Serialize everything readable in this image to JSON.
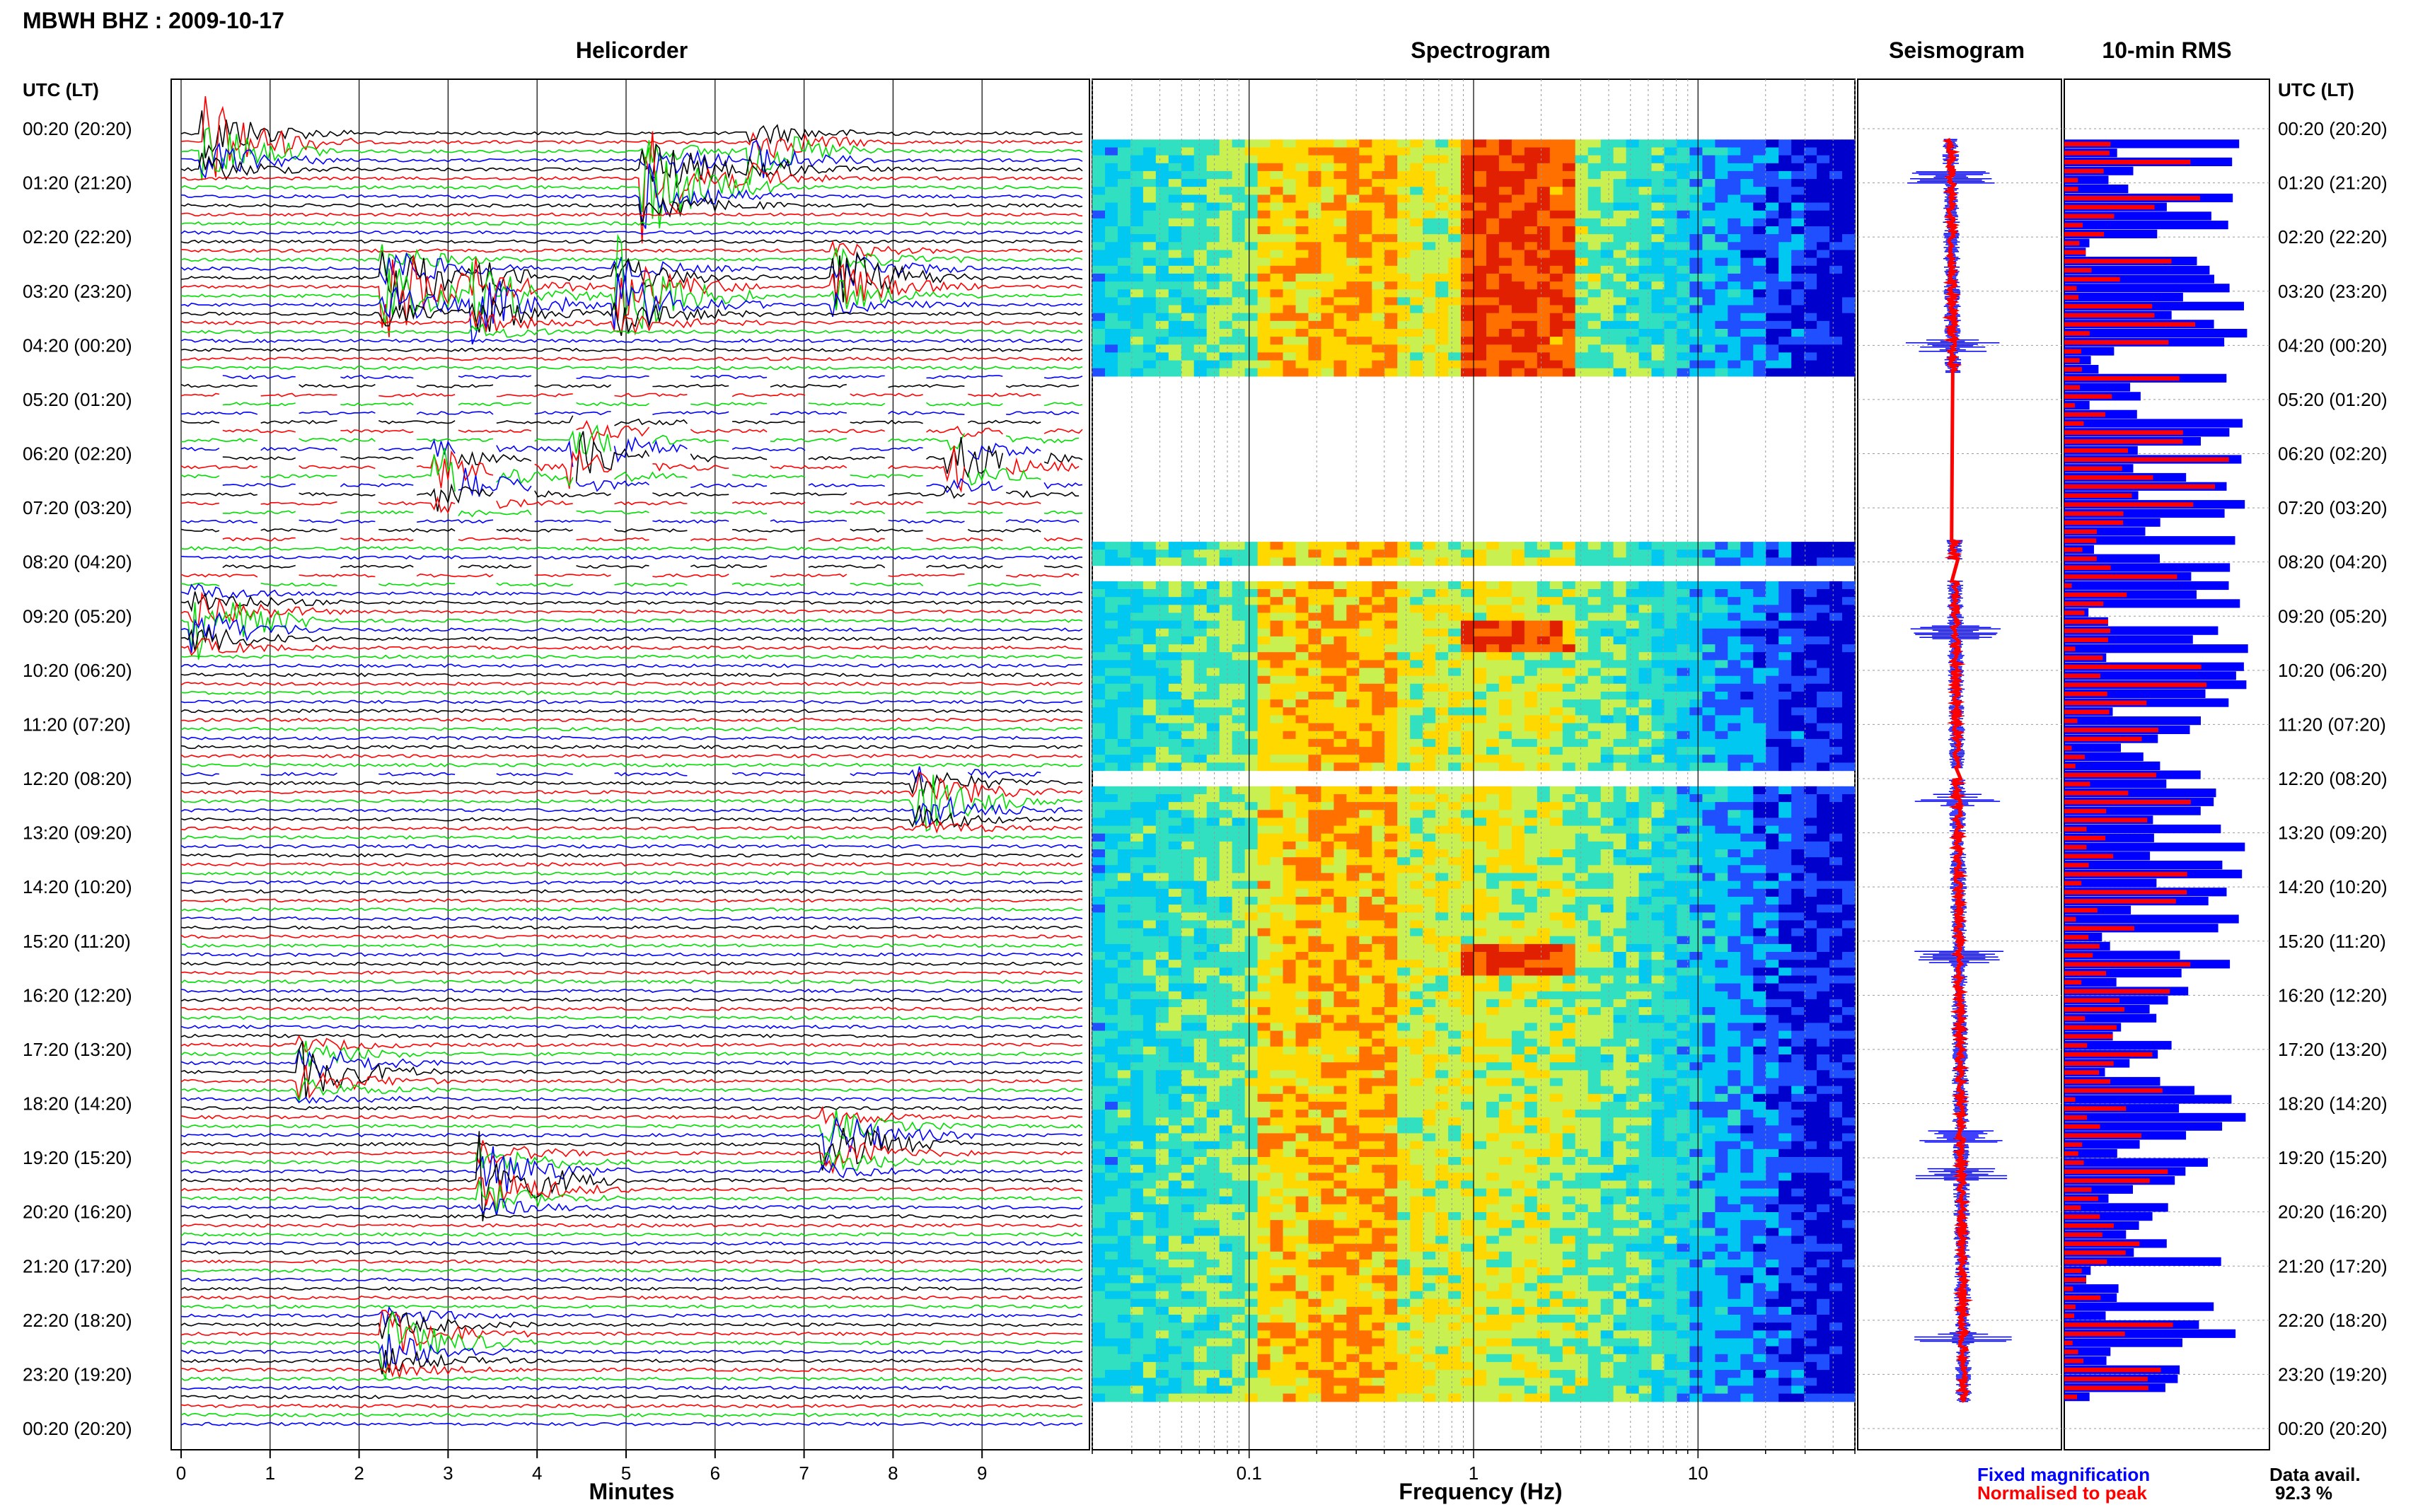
{
  "title": "MBWH BHZ : 2009-10-17",
  "time_axis_label": "UTC (LT)",
  "time_labels": [
    "00:20 (20:20)",
    "01:20 (21:20)",
    "02:20 (22:20)",
    "03:20 (23:20)",
    "04:20 (00:20)",
    "05:20 (01:20)",
    "06:20 (02:20)",
    "07:20 (03:20)",
    "08:20 (04:20)",
    "09:20 (05:20)",
    "10:20 (06:20)",
    "11:20 (07:20)",
    "12:20 (08:20)",
    "13:20 (09:20)",
    "14:20 (10:20)",
    "15:20 (11:20)",
    "16:20 (12:20)",
    "17:20 (13:20)",
    "18:20 (14:20)",
    "19:20 (15:20)",
    "20:20 (16:20)",
    "21:20 (17:20)",
    "22:20 (18:20)",
    "23:20 (19:20)",
    "00:20 (20:20)"
  ],
  "colors": {
    "black": "#000000",
    "red": "#ff0000",
    "green": "#00dd00",
    "blue": "#0000ff"
  },
  "chart_data": [
    {
      "type": "line",
      "title": "Helicorder",
      "xlabel": "Minutes",
      "x_ticks": [
        "0",
        "1",
        "2",
        "3",
        "4",
        "5",
        "6",
        "7",
        "8",
        "9"
      ],
      "xlim": [
        0,
        10
      ],
      "trace_colors_cycle": [
        "black",
        "red",
        "green",
        "blue"
      ],
      "rows_per_hour": 6,
      "bursts": [
        {
          "hour": 0.2,
          "minute": 0.4,
          "amp": 3.5,
          "color": "blue"
        },
        {
          "hour": 0.9,
          "minute": 5.3,
          "amp": 4.5,
          "color": "blue"
        },
        {
          "hour": 0.3,
          "minute": 6.5,
          "amp": 2.0,
          "color": "green"
        },
        {
          "hour": 2.8,
          "minute": 2.4,
          "amp": 4.0,
          "color": "green"
        },
        {
          "hour": 3.0,
          "minute": 5.0,
          "amp": 3.5,
          "color": "red"
        },
        {
          "hour": 2.7,
          "minute": 7.4,
          "amp": 2.5,
          "color": "black"
        },
        {
          "hour": 3.1,
          "minute": 3.4,
          "amp": 2.5,
          "color": "blue"
        },
        {
          "hour": 6.4,
          "minute": 3.0,
          "amp": 2.5,
          "color": "black"
        },
        {
          "hour": 5.9,
          "minute": 4.5,
          "amp": 2.5,
          "color": "red"
        },
        {
          "hour": 6.1,
          "minute": 8.7,
          "amp": 2.0,
          "color": "black"
        },
        {
          "hour": 9.0,
          "minute": 0.3,
          "amp": 2.5,
          "color": "black"
        },
        {
          "hour": 12.3,
          "minute": 8.3,
          "amp": 2.5,
          "color": "black"
        },
        {
          "hour": 17.3,
          "minute": 1.5,
          "amp": 2.0,
          "color": "black"
        },
        {
          "hour": 18.6,
          "minute": 7.3,
          "amp": 2.5,
          "color": "black"
        },
        {
          "hour": 19.3,
          "minute": 3.5,
          "amp": 3.0,
          "color": "blue"
        },
        {
          "hour": 22.3,
          "minute": 2.4,
          "amp": 2.5,
          "color": "blue"
        }
      ]
    },
    {
      "type": "heatmap",
      "title": "Spectrogram",
      "xlabel": "Frequency (Hz)",
      "x_scale": "log",
      "xlim": [
        0.02,
        50
      ],
      "x_ticks": [
        "0.1",
        "1",
        "10"
      ],
      "colormap": [
        "#0000cc",
        "#1f4fff",
        "#00c8f0",
        "#30e0c0",
        "#c8f050",
        "#ffd800",
        "#ff7000",
        "#e02000"
      ],
      "data_gaps_hours": [
        [
          4.5,
          7.6
        ],
        [
          7.95,
          8.35
        ],
        [
          11.8,
          12.0
        ]
      ]
    },
    {
      "type": "line",
      "title": "Seismogram",
      "legend": [
        "Fixed magnification",
        "Normalised to peak"
      ],
      "legend_colors": [
        "blue",
        "red"
      ]
    },
    {
      "type": "bar",
      "title": "10-min RMS",
      "fixed_series_color": "blue",
      "normalised_series_color": "red",
      "orientation": "horizontal"
    }
  ],
  "data_availability": {
    "label": "Data avail.",
    "value": "92.3 %"
  }
}
